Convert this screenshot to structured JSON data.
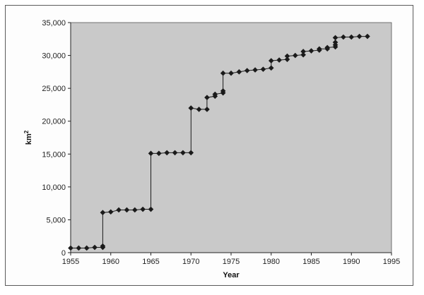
{
  "chart_data": {
    "type": "scatter",
    "title": "",
    "xlabel": "Year",
    "ylabel": "km",
    "ylabel_superscript": "2",
    "xlim": [
      1955,
      1995
    ],
    "ylim": [
      0,
      35000
    ],
    "x_ticks": [
      1955,
      1960,
      1965,
      1970,
      1975,
      1980,
      1985,
      1990,
      1995
    ],
    "y_ticks": [
      0,
      5000,
      10000,
      15000,
      20000,
      25000,
      30000,
      35000
    ],
    "y_tick_labels": [
      "0",
      "5,000",
      "10,000",
      "15,000",
      "20,000",
      "25,000",
      "30,000",
      "35,000"
    ],
    "x_tick_labels": [
      "1955",
      "1960",
      "1965",
      "1970",
      "1975",
      "1980",
      "1985",
      "1990",
      "1995"
    ],
    "grid": false,
    "plot_background": "#c9c9c9",
    "marker_color": "#1a1a1a",
    "line_color": "#1a1a1a",
    "marker": "diamond",
    "series": [
      {
        "points": [
          [
            1955,
            700
          ],
          [
            1956,
            700
          ],
          [
            1957,
            700
          ],
          [
            1958,
            800
          ],
          [
            1959,
            800
          ],
          [
            1959,
            1000
          ],
          [
            1959,
            6100
          ],
          [
            1960,
            6200
          ],
          [
            1961,
            6500
          ],
          [
            1962,
            6500
          ],
          [
            1963,
            6500
          ],
          [
            1964,
            6600
          ],
          [
            1965,
            6600
          ],
          [
            1965,
            15100
          ],
          [
            1966,
            15100
          ],
          [
            1967,
            15200
          ],
          [
            1968,
            15200
          ],
          [
            1969,
            15200
          ],
          [
            1970,
            15200
          ],
          [
            1970,
            22000
          ],
          [
            1971,
            21800
          ],
          [
            1972,
            21800
          ],
          [
            1972,
            23600
          ],
          [
            1973,
            23800
          ],
          [
            1973,
            24100
          ],
          [
            1974,
            24300
          ],
          [
            1974,
            24600
          ],
          [
            1974,
            27300
          ],
          [
            1975,
            27300
          ],
          [
            1976,
            27500
          ],
          [
            1977,
            27700
          ],
          [
            1978,
            27800
          ],
          [
            1979,
            27900
          ],
          [
            1980,
            28100
          ],
          [
            1980,
            29200
          ],
          [
            1981,
            29300
          ],
          [
            1982,
            29400
          ],
          [
            1982,
            29900
          ],
          [
            1983,
            30000
          ],
          [
            1984,
            30100
          ],
          [
            1984,
            30600
          ],
          [
            1985,
            30700
          ],
          [
            1986,
            30800
          ],
          [
            1986,
            31000
          ],
          [
            1987,
            31000
          ],
          [
            1987,
            31200
          ],
          [
            1988,
            31300
          ],
          [
            1988,
            31600
          ],
          [
            1988,
            32000
          ],
          [
            1988,
            32700
          ],
          [
            1989,
            32800
          ],
          [
            1990,
            32800
          ],
          [
            1991,
            32900
          ],
          [
            1992,
            32900
          ]
        ]
      }
    ]
  }
}
